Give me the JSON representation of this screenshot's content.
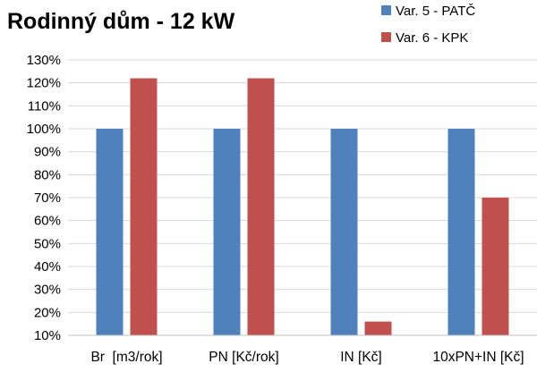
{
  "chart_data": {
    "type": "bar",
    "title": "Rodinný dům - 12 kW",
    "xlabel": "",
    "ylabel": "",
    "categories": [
      "Br  [m3/rok]",
      "PN [Kč/rok]",
      "IN [Kč]",
      "10xPN+IN [Kč]"
    ],
    "series": [
      {
        "name": "Var. 5 - PATČ",
        "color": "#4f81bd",
        "values": [
          100,
          100,
          100,
          100
        ]
      },
      {
        "name": "Var. 6 - KPK",
        "color": "#c0504d",
        "values": [
          122,
          122,
          16,
          70
        ]
      }
    ],
    "ylim": [
      10,
      130
    ],
    "ytick_step": 10,
    "ytick_suffix": "%",
    "grid": true,
    "legend": "top-right"
  }
}
